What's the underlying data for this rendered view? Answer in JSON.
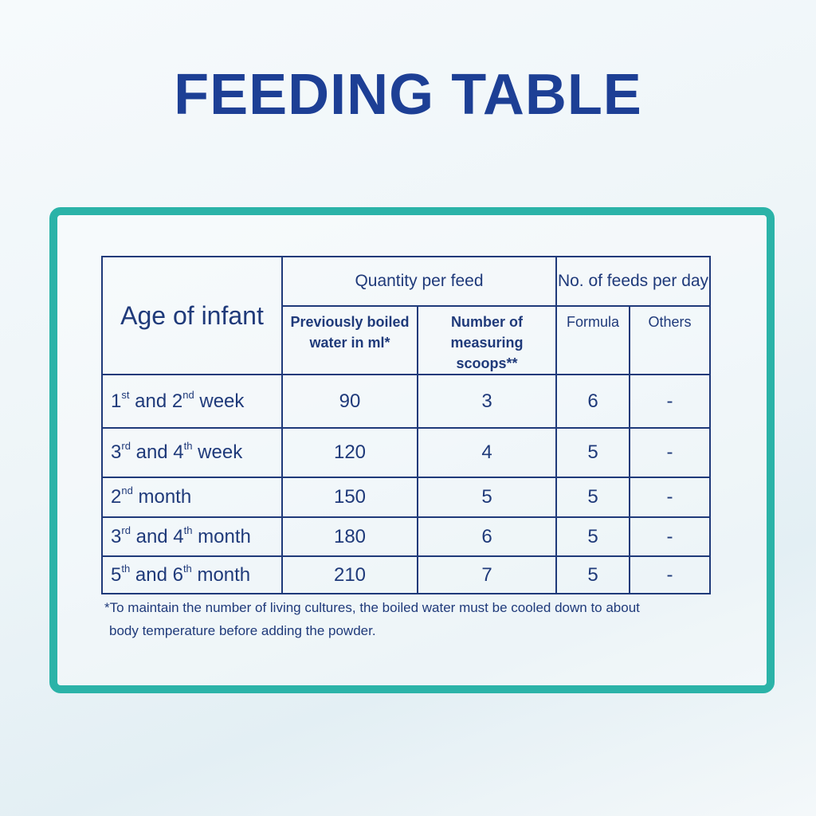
{
  "title": "FEEDING TABLE",
  "table": {
    "header": {
      "age": "Age of infant",
      "quantity": "Quantity per feed",
      "feeds": "No. of feeds per day",
      "water": [
        "Previously boiled",
        "water in ml*"
      ],
      "scoops": [
        "Number of",
        "measuring scoops**"
      ],
      "formula": "Formula",
      "others": "Others"
    },
    "rows": [
      [
        "1st and 2nd week",
        90,
        3,
        6,
        "-"
      ],
      [
        "3rd and 4th week",
        120,
        4,
        5,
        "-"
      ],
      [
        "2nd month",
        150,
        5,
        5,
        "-"
      ],
      [
        "3rd and 4th month",
        180,
        6,
        5,
        "-"
      ],
      [
        "5th and 6th month",
        210,
        7,
        5,
        "-"
      ]
    ]
  },
  "footnote": [
    "*To maintain the number of living cultures, the boiled water must be cooled down to about",
    "body temperature before adding the powder."
  ]
}
